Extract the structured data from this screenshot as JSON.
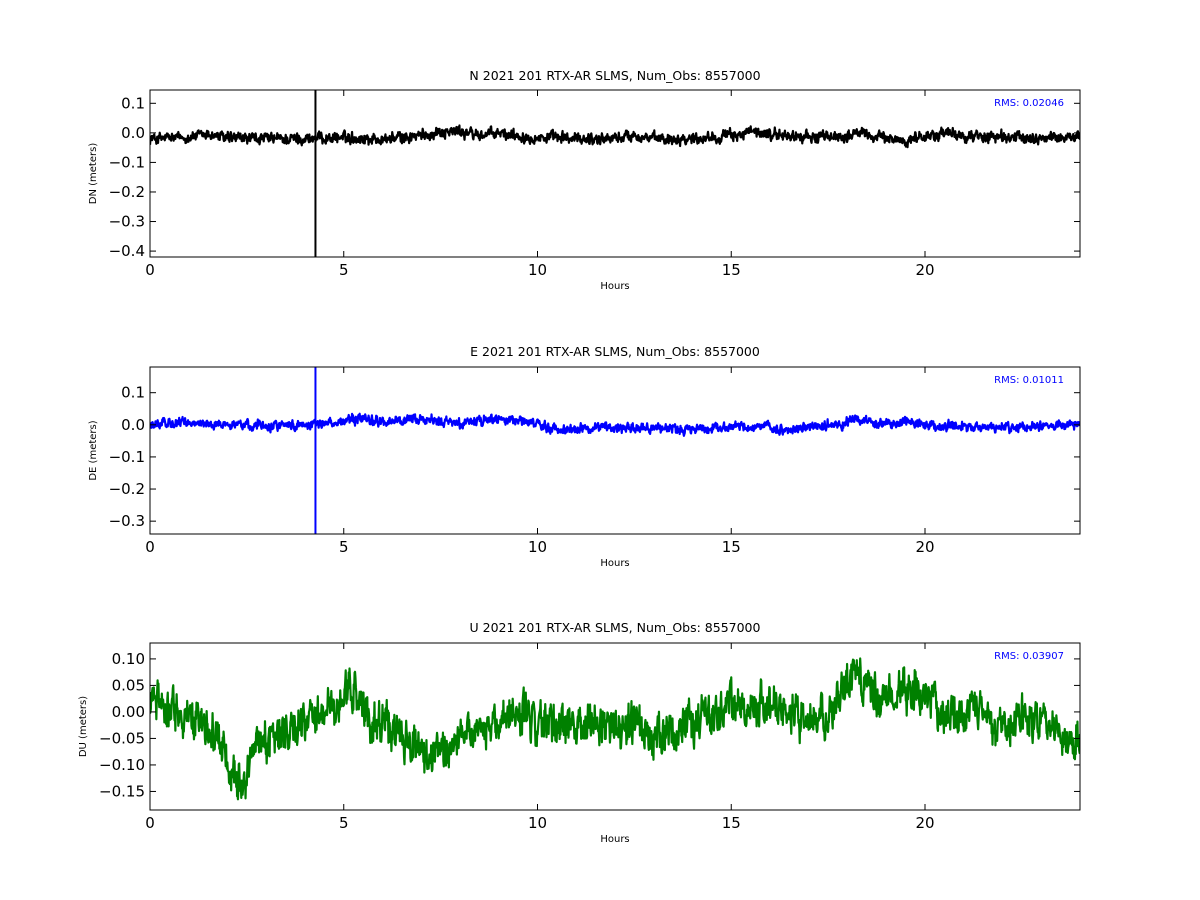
{
  "chart_data": [
    {
      "type": "line",
      "title": "N 2021 201 RTX-AR  SLMS, Num_Obs: 8557000",
      "xlabel": "Hours",
      "ylabel": "DN (meters)",
      "xlim": [
        0,
        24
      ],
      "ylim": [
        -0.42,
        0.145
      ],
      "xticks": [
        0,
        5,
        10,
        15,
        20
      ],
      "xtick_labels": [
        "0",
        "5",
        "10",
        "15",
        "20"
      ],
      "yticks": [
        0.1,
        0.0,
        -0.1,
        -0.2,
        -0.3,
        -0.4
      ],
      "ytick_labels": [
        "0.1",
        "0.0",
        "−0.1",
        "−0.2",
        "−0.3",
        "−0.4"
      ],
      "rms_label": "RMS:  0.02046",
      "rms_color": "#0000ff",
      "grid": false,
      "series": [
        {
          "color": "#000000",
          "noise_amplitude": 0.014,
          "spike": {
            "x": 4.27,
            "y_min": -0.42,
            "y_max": 0.145
          },
          "trend": [
            [
              0,
              -0.02
            ],
            [
              1,
              -0.015
            ],
            [
              1.5,
              -0.005
            ],
            [
              2,
              -0.018
            ],
            [
              3,
              -0.02
            ],
            [
              4,
              -0.02
            ],
            [
              5,
              -0.015
            ],
            [
              6,
              -0.022
            ],
            [
              7,
              -0.01
            ],
            [
              7.5,
              0.005
            ],
            [
              8,
              0.005
            ],
            [
              8.5,
              -0.008
            ],
            [
              9,
              -0.002
            ],
            [
              10,
              -0.015
            ],
            [
              11,
              -0.02
            ],
            [
              12,
              -0.018
            ],
            [
              12.5,
              -0.008
            ],
            [
              13,
              -0.02
            ],
            [
              14,
              -0.018
            ],
            [
              15,
              -0.01
            ],
            [
              15.5,
              0.002
            ],
            [
              16,
              -0.005
            ],
            [
              17,
              -0.015
            ],
            [
              18,
              -0.01
            ],
            [
              18.3,
              0.0
            ],
            [
              19,
              -0.02
            ],
            [
              19.5,
              -0.025
            ],
            [
              20,
              -0.012
            ],
            [
              20.5,
              -0.002
            ],
            [
              21,
              -0.01
            ],
            [
              22,
              -0.015
            ],
            [
              23,
              -0.018
            ],
            [
              24,
              -0.012
            ]
          ]
        }
      ]
    },
    {
      "type": "line",
      "title": "E 2021 201 RTX-AR  SLMS, Num_Obs: 8557000",
      "xlabel": "Hours",
      "ylabel": "DE (meters)",
      "xlim": [
        0,
        24
      ],
      "ylim": [
        -0.34,
        0.18
      ],
      "xticks": [
        0,
        5,
        10,
        15,
        20
      ],
      "xtick_labels": [
        "0",
        "5",
        "10",
        "15",
        "20"
      ],
      "yticks": [
        0.1,
        0.0,
        -0.1,
        -0.2,
        -0.3
      ],
      "ytick_labels": [
        "0.1",
        "0.0",
        "−0.1",
        "−0.2",
        "−0.3"
      ],
      "rms_label": "RMS:  0.01011",
      "rms_color": "#0000ff",
      "grid": false,
      "series": [
        {
          "color": "#0000ff",
          "noise_amplitude": 0.011,
          "spike": {
            "x": 4.27,
            "y_min": -0.34,
            "y_max": 0.18
          },
          "trend": [
            [
              0,
              0.0
            ],
            [
              0.5,
              0.005
            ],
            [
              1,
              0.005
            ],
            [
              2,
              0.0
            ],
            [
              3,
              0.0
            ],
            [
              4,
              0.0
            ],
            [
              5,
              0.01
            ],
            [
              5.5,
              0.02
            ],
            [
              6,
              0.01
            ],
            [
              7,
              0.015
            ],
            [
              8,
              0.005
            ],
            [
              9,
              0.02
            ],
            [
              9.5,
              0.015
            ],
            [
              10,
              0.0
            ],
            [
              10.5,
              -0.015
            ],
            [
              11,
              -0.012
            ],
            [
              12,
              -0.005
            ],
            [
              13,
              -0.01
            ],
            [
              14,
              -0.015
            ],
            [
              15,
              -0.003
            ],
            [
              16,
              -0.01
            ],
            [
              16.2,
              -0.02
            ],
            [
              17,
              -0.008
            ],
            [
              18,
              0.005
            ],
            [
              18.1,
              0.02
            ],
            [
              19,
              0.0
            ],
            [
              19.6,
              0.01
            ],
            [
              20,
              0.0
            ],
            [
              21,
              -0.01
            ],
            [
              22,
              -0.01
            ],
            [
              23,
              0.0
            ],
            [
              24,
              0.0
            ]
          ]
        }
      ]
    },
    {
      "type": "line",
      "title": "U 2021 201 RTX-AR  SLMS, Num_Obs: 8557000",
      "xlabel": "Hours",
      "ylabel": "DU (meters)",
      "xlim": [
        0,
        24
      ],
      "ylim": [
        -0.185,
        0.13
      ],
      "xticks": [
        0,
        5,
        10,
        15,
        20
      ],
      "xtick_labels": [
        "0",
        "5",
        "10",
        "15",
        "20"
      ],
      "yticks": [
        0.1,
        0.05,
        0.0,
        -0.05,
        -0.1,
        -0.15
      ],
      "ytick_labels": [
        "0.10",
        "0.05",
        "0.00",
        "−0.05",
        "−0.10",
        "−0.15"
      ],
      "rms_label": "RMS:  0.03907",
      "rms_color": "#0000ff",
      "grid": false,
      "series": [
        {
          "color": "#008000",
          "noise_amplitude": 0.028,
          "trend": [
            [
              0,
              0.02
            ],
            [
              0.5,
              0.01
            ],
            [
              1,
              -0.02
            ],
            [
              1.5,
              -0.03
            ],
            [
              2,
              -0.08
            ],
            [
              2.3,
              -0.13
            ],
            [
              2.7,
              -0.07
            ],
            [
              3,
              -0.05
            ],
            [
              3.5,
              -0.04
            ],
            [
              4,
              -0.03
            ],
            [
              4.5,
              0.0
            ],
            [
              5,
              0.03
            ],
            [
              5.3,
              0.04
            ],
            [
              5.6,
              -0.01
            ],
            [
              6,
              -0.02
            ],
            [
              6.5,
              -0.05
            ],
            [
              7,
              -0.08
            ],
            [
              7.3,
              -0.1
            ],
            [
              7.8,
              -0.06
            ],
            [
              8.3,
              -0.03
            ],
            [
              9,
              -0.02
            ],
            [
              9.5,
              0.0
            ],
            [
              10,
              -0.03
            ],
            [
              10.5,
              -0.02
            ],
            [
              11,
              -0.02
            ],
            [
              11.5,
              -0.03
            ],
            [
              12,
              -0.03
            ],
            [
              12.5,
              -0.02
            ],
            [
              13,
              -0.05
            ],
            [
              14,
              -0.02
            ],
            [
              14.5,
              0.0
            ],
            [
              15,
              0.02
            ],
            [
              15.5,
              0.01
            ],
            [
              16,
              0.02
            ],
            [
              16.5,
              0.0
            ],
            [
              17,
              -0.02
            ],
            [
              17.5,
              0.0
            ],
            [
              18,
              0.05
            ],
            [
              18.3,
              0.07
            ],
            [
              18.8,
              0.02
            ],
            [
              19.4,
              0.05
            ],
            [
              20,
              0.03
            ],
            [
              20.5,
              0.0
            ],
            [
              21,
              0.01
            ],
            [
              21.5,
              0.0
            ],
            [
              22,
              -0.02
            ],
            [
              22.5,
              0.0
            ],
            [
              23,
              -0.02
            ],
            [
              23.5,
              -0.04
            ],
            [
              24,
              -0.05
            ]
          ]
        }
      ]
    }
  ]
}
